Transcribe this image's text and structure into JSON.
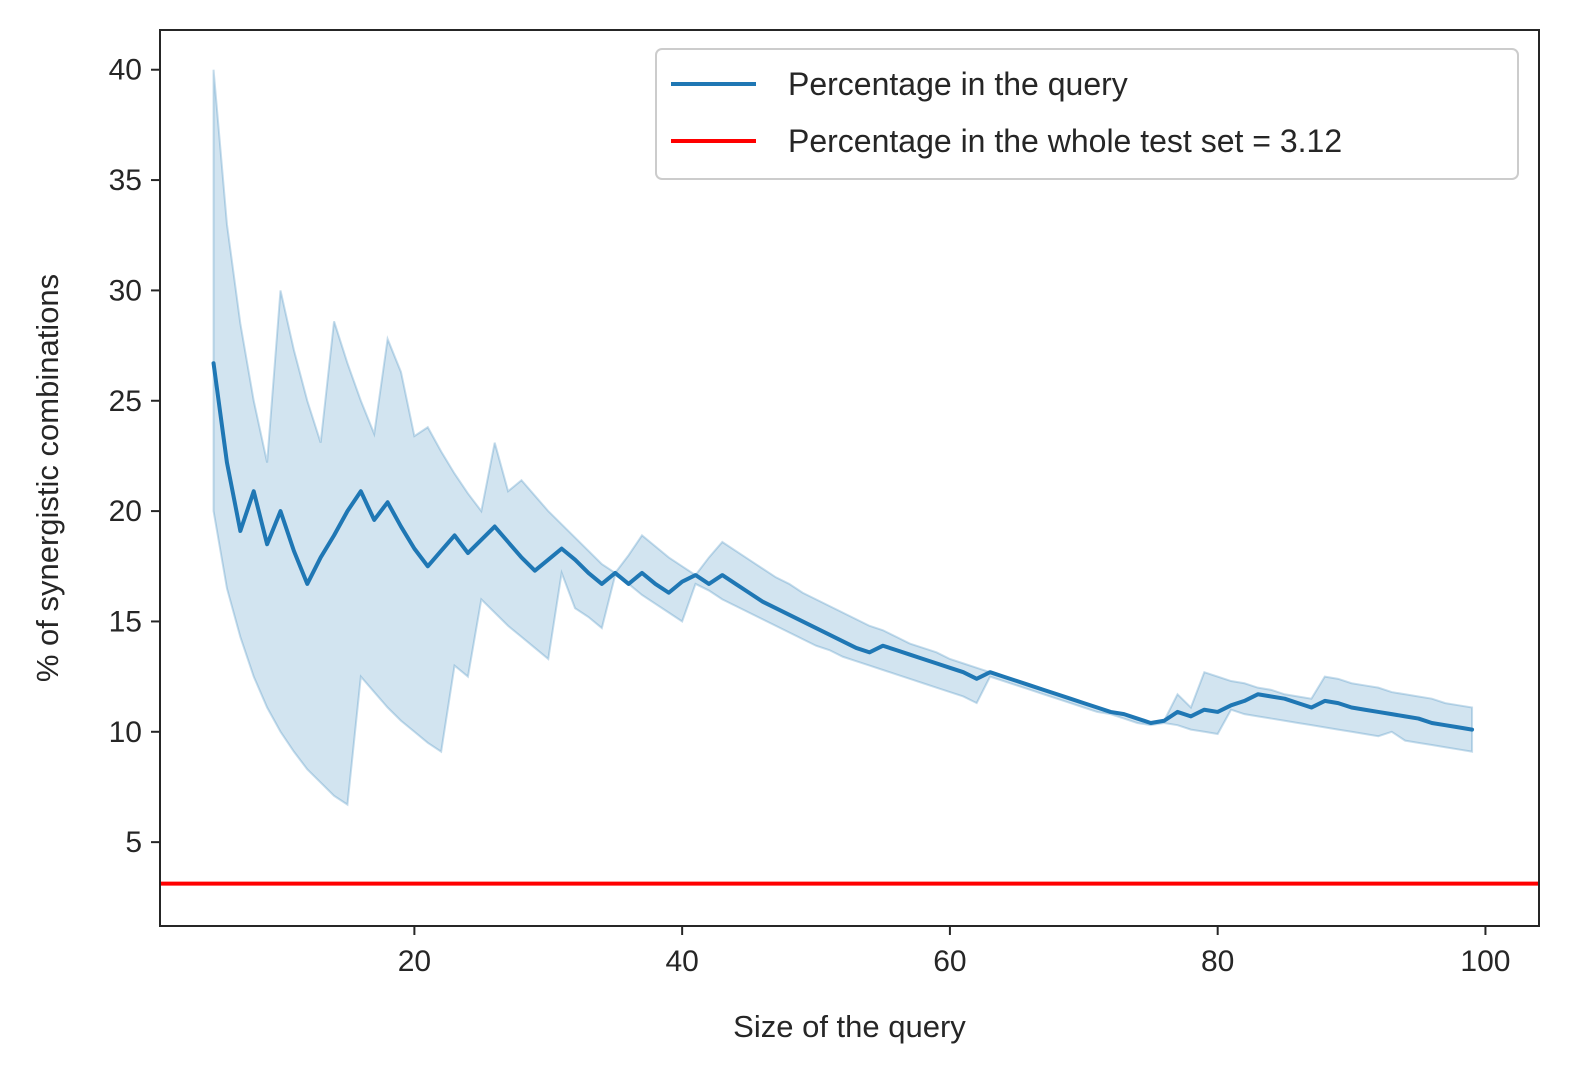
{
  "chart_data": {
    "type": "line",
    "title": "",
    "xlabel": "Size of the query",
    "ylabel": "% of synergistic combinations",
    "xlim": [
      1,
      104
    ],
    "ylim": [
      1.2,
      41.8
    ],
    "xticks": [
      20,
      40,
      60,
      80,
      100
    ],
    "yticks": [
      5,
      10,
      15,
      20,
      25,
      30,
      35,
      40
    ],
    "grid": false,
    "legend": {
      "placement": "top-right",
      "entries": [
        {
          "label": "Percentage in the query",
          "color": "#1f77b4"
        },
        {
          "label": "Percentage in the whole test set = 3.12",
          "color": "#ff0000"
        }
      ]
    },
    "series": [
      {
        "name": "Percentage in the query",
        "color": "#1f77b4",
        "band_color": "#1f77b4",
        "x": [
          5,
          6,
          7,
          8,
          9,
          10,
          11,
          12,
          13,
          14,
          15,
          16,
          17,
          18,
          19,
          20,
          21,
          22,
          23,
          24,
          25,
          26,
          27,
          28,
          29,
          30,
          31,
          32,
          33,
          34,
          35,
          36,
          37,
          38,
          39,
          40,
          41,
          42,
          43,
          44,
          45,
          46,
          47,
          48,
          49,
          50,
          51,
          52,
          53,
          54,
          55,
          56,
          57,
          58,
          59,
          60,
          61,
          62,
          63,
          64,
          65,
          66,
          67,
          68,
          69,
          70,
          71,
          72,
          73,
          74,
          75,
          76,
          77,
          78,
          79,
          80,
          81,
          82,
          83,
          84,
          85,
          86,
          87,
          88,
          89,
          90,
          91,
          92,
          93,
          94,
          95,
          96,
          97,
          98,
          99
        ],
        "values": [
          26.7,
          22.2,
          19.1,
          20.9,
          18.5,
          20.0,
          18.2,
          16.7,
          17.9,
          18.9,
          20.0,
          20.9,
          19.6,
          20.4,
          19.3,
          18.3,
          17.5,
          18.2,
          18.9,
          18.1,
          18.7,
          19.3,
          18.6,
          17.9,
          17.3,
          17.8,
          18.3,
          17.8,
          17.2,
          16.7,
          17.2,
          16.7,
          17.2,
          16.7,
          16.3,
          16.8,
          17.1,
          16.7,
          17.1,
          16.7,
          16.3,
          15.9,
          15.6,
          15.3,
          15.0,
          14.7,
          14.4,
          14.1,
          13.8,
          13.6,
          13.9,
          13.7,
          13.5,
          13.3,
          13.1,
          12.9,
          12.7,
          12.4,
          12.7,
          12.5,
          12.3,
          12.1,
          11.9,
          11.7,
          11.5,
          11.3,
          11.1,
          10.9,
          10.8,
          10.6,
          10.4,
          10.5,
          10.9,
          10.7,
          11.0,
          10.9,
          11.2,
          11.4,
          11.7,
          11.6,
          11.5,
          11.3,
          11.1,
          11.4,
          11.3,
          11.1,
          11.0,
          10.9,
          10.8,
          10.7,
          10.6,
          10.4,
          10.3,
          10.2,
          10.1
        ],
        "lower": [
          20.0,
          16.5,
          14.3,
          12.5,
          11.1,
          10.0,
          9.1,
          8.3,
          7.7,
          7.1,
          6.7,
          12.5,
          11.8,
          11.1,
          10.5,
          10.0,
          9.5,
          9.1,
          13.0,
          12.5,
          16.0,
          15.4,
          14.8,
          14.3,
          13.8,
          13.3,
          17.2,
          15.6,
          15.2,
          14.7,
          17.1,
          16.7,
          16.2,
          15.8,
          15.4,
          15.0,
          16.7,
          16.4,
          16.0,
          15.7,
          15.4,
          15.1,
          14.8,
          14.5,
          14.2,
          13.9,
          13.7,
          13.4,
          13.2,
          13.0,
          12.8,
          12.6,
          12.4,
          12.2,
          12.0,
          11.8,
          11.6,
          11.3,
          12.5,
          12.3,
          12.1,
          11.9,
          11.7,
          11.5,
          11.3,
          11.1,
          10.9,
          10.8,
          10.6,
          10.4,
          10.3,
          10.4,
          10.3,
          10.1,
          10.0,
          9.9,
          11.0,
          10.8,
          10.7,
          10.6,
          10.5,
          10.4,
          10.3,
          10.2,
          10.1,
          10.0,
          9.9,
          9.8,
          10.0,
          9.6,
          9.5,
          9.4,
          9.3,
          9.2,
          9.1
        ],
        "upper": [
          40.0,
          33.0,
          28.5,
          25.0,
          22.2,
          30.0,
          27.3,
          25.0,
          23.1,
          28.6,
          26.7,
          25.0,
          23.5,
          27.8,
          26.3,
          23.4,
          23.8,
          22.7,
          21.7,
          20.8,
          20.0,
          23.1,
          20.9,
          21.4,
          20.7,
          20.0,
          19.4,
          18.8,
          18.2,
          17.6,
          17.2,
          18.0,
          18.9,
          18.4,
          17.9,
          17.5,
          17.1,
          17.9,
          18.6,
          18.2,
          17.8,
          17.4,
          17.0,
          16.7,
          16.3,
          16.0,
          15.7,
          15.4,
          15.1,
          14.8,
          14.6,
          14.3,
          14.0,
          13.8,
          13.6,
          13.3,
          13.1,
          12.9,
          12.7,
          12.5,
          12.3,
          12.1,
          11.9,
          11.7,
          11.5,
          11.3,
          11.1,
          10.9,
          10.8,
          10.6,
          10.4,
          10.5,
          11.7,
          11.1,
          12.7,
          12.5,
          12.3,
          12.2,
          12.0,
          11.9,
          11.7,
          11.6,
          11.5,
          12.5,
          12.4,
          12.2,
          12.1,
          12.0,
          11.8,
          11.7,
          11.6,
          11.5,
          11.3,
          11.2,
          11.1
        ]
      },
      {
        "name": "Percentage in the whole test set = 3.12",
        "color": "#ff0000",
        "type": "hline",
        "value": 3.12
      }
    ]
  }
}
